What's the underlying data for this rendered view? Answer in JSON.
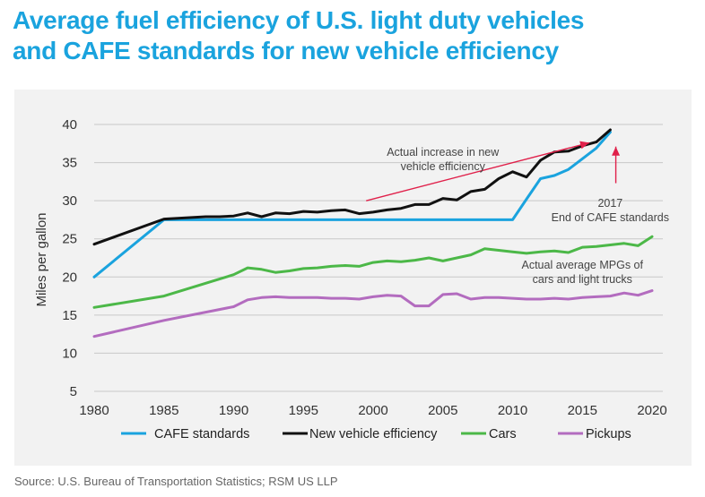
{
  "title_lines": [
    "Average fuel efficiency of U.S. light duty vehicles",
    "and CAFE standards for new vehicle efficiency"
  ],
  "source": "Source: U.S. Bureau of Transportation Statistics; RSM US LLP",
  "colors": {
    "title": "#1aa3de",
    "background_panel": "#f2f2f2",
    "arrow": "#e0204a"
  },
  "chart_data": {
    "type": "line",
    "ylabel": "Miles per gallon",
    "xlabel": "",
    "xlim": [
      1980,
      2020
    ],
    "ylim": [
      5,
      40
    ],
    "x_ticks": [
      1980,
      1985,
      1990,
      1995,
      2000,
      2005,
      2010,
      2015,
      2020
    ],
    "y_ticks": [
      5,
      10,
      15,
      20,
      25,
      30,
      35,
      40
    ],
    "grid": "horizontal",
    "legend_position": "bottom",
    "series": [
      {
        "name": "CAFE standards",
        "color": "#1aa3de",
        "points": [
          [
            1980,
            20.0
          ],
          [
            1985,
            27.5
          ],
          [
            1990,
            27.5
          ],
          [
            1995,
            27.5
          ],
          [
            2000,
            27.5
          ],
          [
            2005,
            27.5
          ],
          [
            2010,
            27.5
          ],
          [
            2011,
            30.2
          ],
          [
            2012,
            32.9
          ],
          [
            2013,
            33.3
          ],
          [
            2014,
            34.1
          ],
          [
            2015,
            35.5
          ],
          [
            2016,
            36.9
          ],
          [
            2017,
            39.0
          ]
        ]
      },
      {
        "name": "New vehicle efficiency",
        "color": "#111111",
        "points": [
          [
            1980,
            24.3
          ],
          [
            1985,
            27.6
          ],
          [
            1986,
            27.7
          ],
          [
            1987,
            27.8
          ],
          [
            1988,
            27.9
          ],
          [
            1989,
            27.9
          ],
          [
            1990,
            28.0
          ],
          [
            1991,
            28.4
          ],
          [
            1992,
            27.9
          ],
          [
            1993,
            28.4
          ],
          [
            1994,
            28.3
          ],
          [
            1995,
            28.6
          ],
          [
            1996,
            28.5
          ],
          [
            1997,
            28.7
          ],
          [
            1998,
            28.8
          ],
          [
            1999,
            28.3
          ],
          [
            2000,
            28.5
          ],
          [
            2001,
            28.8
          ],
          [
            2002,
            29.0
          ],
          [
            2003,
            29.5
          ],
          [
            2004,
            29.5
          ],
          [
            2005,
            30.3
          ],
          [
            2006,
            30.1
          ],
          [
            2007,
            31.2
          ],
          [
            2008,
            31.5
          ],
          [
            2009,
            32.9
          ],
          [
            2010,
            33.8
          ],
          [
            2011,
            33.1
          ],
          [
            2012,
            35.3
          ],
          [
            2013,
            36.4
          ],
          [
            2014,
            36.5
          ],
          [
            2015,
            37.2
          ],
          [
            2016,
            37.7
          ],
          [
            2017,
            39.3
          ]
        ]
      },
      {
        "name": "Cars",
        "color": "#4cb848",
        "points": [
          [
            1980,
            16.0
          ],
          [
            1985,
            17.5
          ],
          [
            1990,
            20.3
          ],
          [
            1991,
            21.2
          ],
          [
            1992,
            21.0
          ],
          [
            1993,
            20.6
          ],
          [
            1994,
            20.8
          ],
          [
            1995,
            21.1
          ],
          [
            1996,
            21.2
          ],
          [
            1997,
            21.4
          ],
          [
            1998,
            21.5
          ],
          [
            1999,
            21.4
          ],
          [
            2000,
            21.9
          ],
          [
            2001,
            22.1
          ],
          [
            2002,
            22.0
          ],
          [
            2003,
            22.2
          ],
          [
            2004,
            22.5
          ],
          [
            2005,
            22.1
          ],
          [
            2006,
            22.5
          ],
          [
            2007,
            22.9
          ],
          [
            2008,
            23.7
          ],
          [
            2009,
            23.5
          ],
          [
            2010,
            23.3
          ],
          [
            2011,
            23.1
          ],
          [
            2012,
            23.3
          ],
          [
            2013,
            23.4
          ],
          [
            2014,
            23.2
          ],
          [
            2015,
            23.9
          ],
          [
            2016,
            24.0
          ],
          [
            2017,
            24.2
          ],
          [
            2018,
            24.4
          ],
          [
            2019,
            24.1
          ],
          [
            2020,
            25.3
          ]
        ]
      },
      {
        "name": "Pickups",
        "color": "#b36cbf",
        "points": [
          [
            1980,
            12.2
          ],
          [
            1985,
            14.3
          ],
          [
            1990,
            16.1
          ],
          [
            1991,
            17.0
          ],
          [
            1992,
            17.3
          ],
          [
            1993,
            17.4
          ],
          [
            1994,
            17.3
          ],
          [
            1995,
            17.3
          ],
          [
            1996,
            17.3
          ],
          [
            1997,
            17.2
          ],
          [
            1998,
            17.2
          ],
          [
            1999,
            17.1
          ],
          [
            2000,
            17.4
          ],
          [
            2001,
            17.6
          ],
          [
            2002,
            17.5
          ],
          [
            2003,
            16.2
          ],
          [
            2004,
            16.2
          ],
          [
            2005,
            17.7
          ],
          [
            2006,
            17.8
          ],
          [
            2007,
            17.1
          ],
          [
            2008,
            17.3
          ],
          [
            2009,
            17.3
          ],
          [
            2010,
            17.2
          ],
          [
            2011,
            17.1
          ],
          [
            2012,
            17.1
          ],
          [
            2013,
            17.2
          ],
          [
            2014,
            17.1
          ],
          [
            2015,
            17.3
          ],
          [
            2016,
            17.4
          ],
          [
            2017,
            17.5
          ],
          [
            2018,
            17.9
          ],
          [
            2019,
            17.6
          ],
          [
            2020,
            18.2
          ]
        ]
      }
    ],
    "annotations": [
      {
        "lines": [
          "Actual increase in new",
          "vehicle efficiency"
        ],
        "at": [
          2005,
          35.9
        ]
      },
      {
        "lines": [
          "2017",
          "End of CAFE standards"
        ],
        "at": [
          2017,
          29.2
        ]
      },
      {
        "lines": [
          "Actual average MPGs of",
          "cars and light trucks"
        ],
        "at": [
          2015,
          21.1
        ]
      }
    ],
    "arrows": [
      {
        "from": [
          1999.5,
          30.0
        ],
        "to": [
          2015.5,
          37.6
        ]
      },
      {
        "from": [
          2017.4,
          32.3
        ],
        "to": [
          2017.4,
          37.1
        ]
      }
    ]
  }
}
